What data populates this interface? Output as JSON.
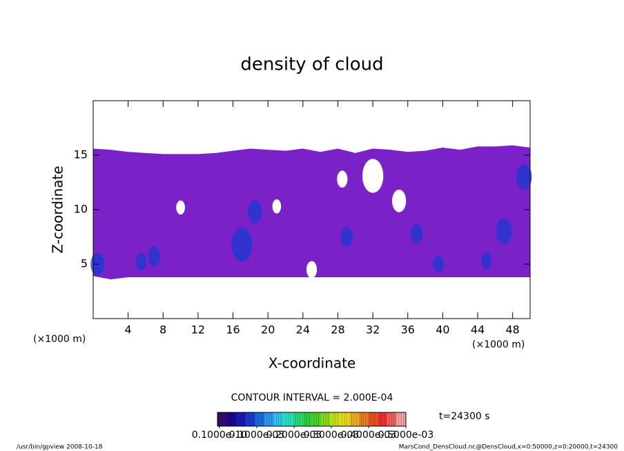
{
  "chart_data": {
    "type": "contour",
    "title": "density of cloud",
    "xlabel": "X-coordinate",
    "ylabel": "Z-coordinate",
    "x_unit": "(×1000 m)",
    "xlim": [
      0,
      50
    ],
    "ylim": [
      0,
      20
    ],
    "xticks": [
      4,
      8,
      12,
      16,
      20,
      24,
      28,
      32,
      36,
      40,
      44,
      48
    ],
    "yticks": [
      5,
      10,
      15
    ],
    "contour_interval_label": "CONTOUR INTERVAL = 2.000E-04",
    "time_label": "t=24300 s",
    "footer_left": "/usr/bin/gpview   2008-10-18",
    "footer_right": "MarsCond_DensCloud.nc@DensCloud,x=0:50000,z=0:20000,t=24300",
    "colorbar": {
      "colors": [
        "#3a0a6a",
        "#1a0a8a",
        "#1a1ab0",
        "#1a3ad0",
        "#1a6ae0",
        "#2a9ae8",
        "#2ac8e8",
        "#2ae0c0",
        "#2ad880",
        "#2ad040",
        "#4ad020",
        "#8ad820",
        "#c8e020",
        "#e8d820",
        "#e8b020",
        "#e88020",
        "#e85020",
        "#e83030",
        "#e86060",
        "#f0a0a0"
      ],
      "ticks": [
        {
          "value": 1e-11,
          "label": "0.1000e-10"
        },
        {
          "value": 0.0001,
          "label": "0.1000e-03"
        },
        {
          "value": 0.0002,
          "label": "0.2000e-03"
        },
        {
          "value": 0.0003,
          "label": "0.3000e-03"
        },
        {
          "value": 0.0004,
          "label": "0.4000e-03"
        },
        {
          "value": 0.0005,
          "label": "0.5000e-03"
        }
      ]
    },
    "layer": {
      "color": "#7a22c8",
      "x": [
        0,
        2,
        4,
        6,
        8,
        10,
        12,
        14,
        16,
        18,
        20,
        22,
        24,
        26,
        28,
        30,
        32,
        34,
        36,
        38,
        40,
        42,
        44,
        46,
        48,
        50
      ],
      "top": [
        15.6,
        15.5,
        15.3,
        15.2,
        15.1,
        15.1,
        15.1,
        15.2,
        15.4,
        15.6,
        15.5,
        15.4,
        15.6,
        15.3,
        15.6,
        15.2,
        15.6,
        15.5,
        15.3,
        15.4,
        15.7,
        15.5,
        15.8,
        15.8,
        15.9,
        15.7
      ],
      "base": [
        3.9,
        3.6,
        3.8,
        3.8,
        3.8,
        3.8,
        3.8,
        3.8,
        3.8,
        3.8,
        3.8,
        3.8,
        3.8,
        3.8,
        3.8,
        3.8,
        3.8,
        3.8,
        3.8,
        3.8,
        3.8,
        3.8,
        3.8,
        3.8,
        3.8,
        3.8
      ]
    },
    "patches": {
      "x": [
        0.5,
        5.5,
        7.0,
        17.0,
        18.5,
        29.0,
        37.0,
        39.5,
        47.0,
        49.3,
        45.0,
        10.0,
        32.0,
        35.0,
        28.5,
        25.0,
        21.0
      ],
      "y": [
        5.0,
        5.2,
        5.7,
        6.8,
        9.8,
        7.5,
        7.8,
        5.0,
        8.0,
        13.0,
        5.3,
        10.2,
        13.1,
        10.8,
        12.8,
        4.5,
        10.3
      ],
      "values": [
        0.0001,
        0.0001,
        0.0001,
        0.0001,
        0.0001,
        0.0001,
        0.0001,
        0.0001,
        0.0001,
        0.0001,
        0.0001,
        0,
        0,
        0,
        0,
        0,
        0
      ],
      "sizes": [
        0.8,
        0.6,
        0.7,
        1.2,
        0.8,
        0.7,
        0.7,
        0.6,
        0.9,
        0.9,
        0.6,
        0.5,
        1.2,
        0.8,
        0.6,
        0.6,
        0.5
      ]
    }
  }
}
